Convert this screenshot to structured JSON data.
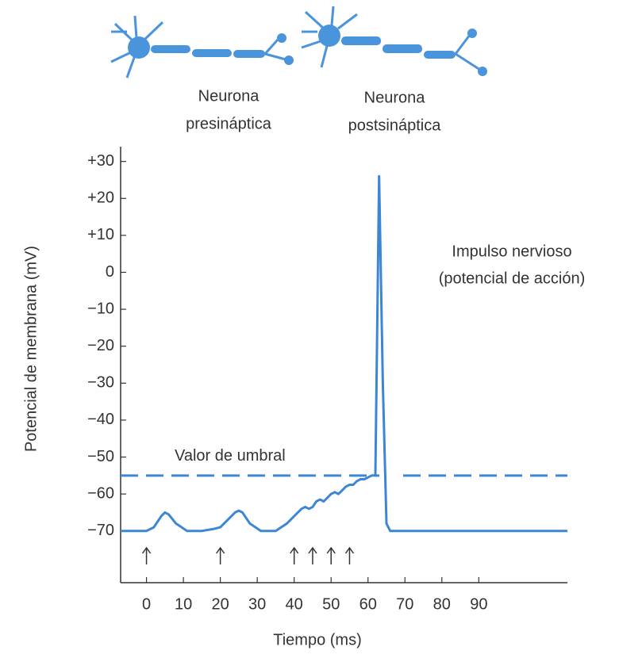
{
  "chart_data": {
    "type": "line",
    "neuron_labels": [
      [
        "Neurona",
        "presináptica"
      ],
      [
        "Neurona",
        "postsináptica"
      ]
    ],
    "y_label": "Potencial de membrana (mV)",
    "x_label": "Tiempo (ms)",
    "annotation": [
      "Impulso nervioso",
      "(potencial de acción)"
    ],
    "threshold": {
      "label": "Valor de umbral",
      "value": -55
    },
    "stimuli": [
      0,
      20,
      40,
      45,
      50,
      55
    ],
    "xlim": [
      -7,
      114
    ],
    "ylim": [
      -84,
      34
    ],
    "xticks": [
      0,
      10,
      20,
      30,
      40,
      50,
      60,
      70,
      80,
      90
    ],
    "yticks": [
      {
        "value": 30,
        "label": "+30"
      },
      {
        "value": 20,
        "label": "+20"
      },
      {
        "value": 10,
        "label": "+10"
      },
      0,
      {
        "value": -10,
        "label": "−10"
      },
      {
        "value": -20,
        "label": "−20"
      },
      {
        "value": -30,
        "label": "−30"
      },
      {
        "value": -40,
        "label": "−40"
      },
      {
        "value": -50,
        "label": "−50"
      },
      {
        "value": -60,
        "label": "−60"
      },
      {
        "value": -70,
        "label": "−70"
      }
    ],
    "grid": false,
    "series": [
      {
        "color": "#3d86d6",
        "x": [
          -7,
          0,
          2,
          4,
          5,
          6,
          8,
          11,
          15,
          18,
          20,
          22,
          24,
          25,
          26,
          28,
          31,
          35,
          38,
          40,
          42,
          43,
          44,
          45,
          46,
          47,
          48,
          49,
          50,
          51,
          52,
          53,
          54,
          55,
          56,
          57,
          58,
          59,
          60,
          61,
          62,
          63,
          64,
          65,
          66,
          70,
          114
        ],
        "values": [
          -70,
          -70,
          -69,
          -66,
          -65,
          -65.5,
          -68,
          -70,
          -70,
          -69.5,
          -69,
          -67,
          -65,
          -64.5,
          -65,
          -68,
          -70,
          -70,
          -68,
          -66,
          -64,
          -63.5,
          -64,
          -63.5,
          -62,
          -61.5,
          -62,
          -61,
          -60,
          -59.5,
          -60,
          -59,
          -58,
          -57.5,
          -57.5,
          -56.5,
          -56,
          -56,
          -55.5,
          -55,
          -55,
          26,
          -30,
          -68,
          -70,
          -70,
          -70
        ]
      }
    ]
  }
}
